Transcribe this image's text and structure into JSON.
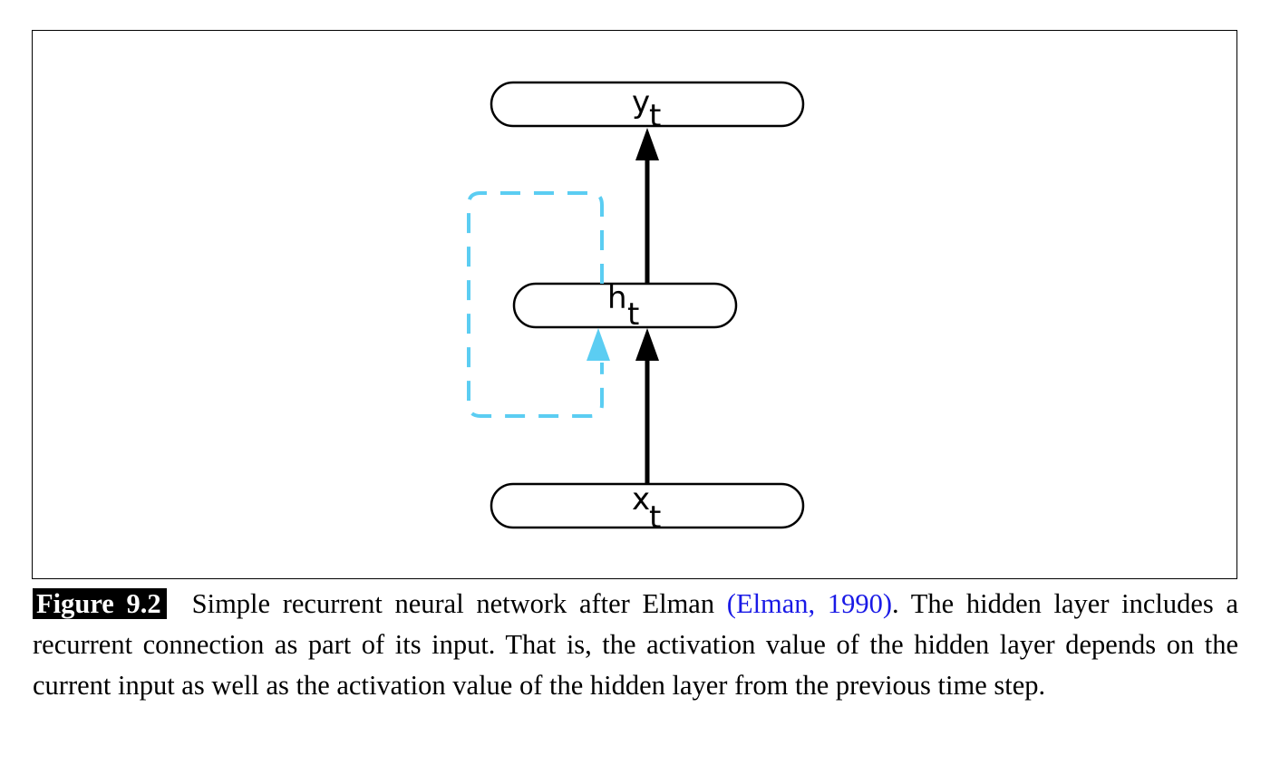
{
  "diagram": {
    "nodes": {
      "output": {
        "var": "y",
        "sub": "t"
      },
      "hidden": {
        "var": "h",
        "sub": "t"
      },
      "input": {
        "var": "x",
        "sub": "t"
      }
    },
    "colors": {
      "stroke": "#000000",
      "recurrent": "#5bcdf2",
      "citation": "#1a1ae6"
    },
    "edges": [
      "input->hidden",
      "hidden->output",
      "hidden->hidden (recurrent, dashed)"
    ]
  },
  "caption": {
    "label": "Figure 9.2",
    "text_before": "Simple recurrent neural network after Elman ",
    "citation": "(Elman, 1990)",
    "text_after": ". The hidden layer includes a recurrent connection as part of its input. That is, the activation value of the hidden layer depends on the current input as well as the activation value of the hidden layer from the previous time step."
  }
}
